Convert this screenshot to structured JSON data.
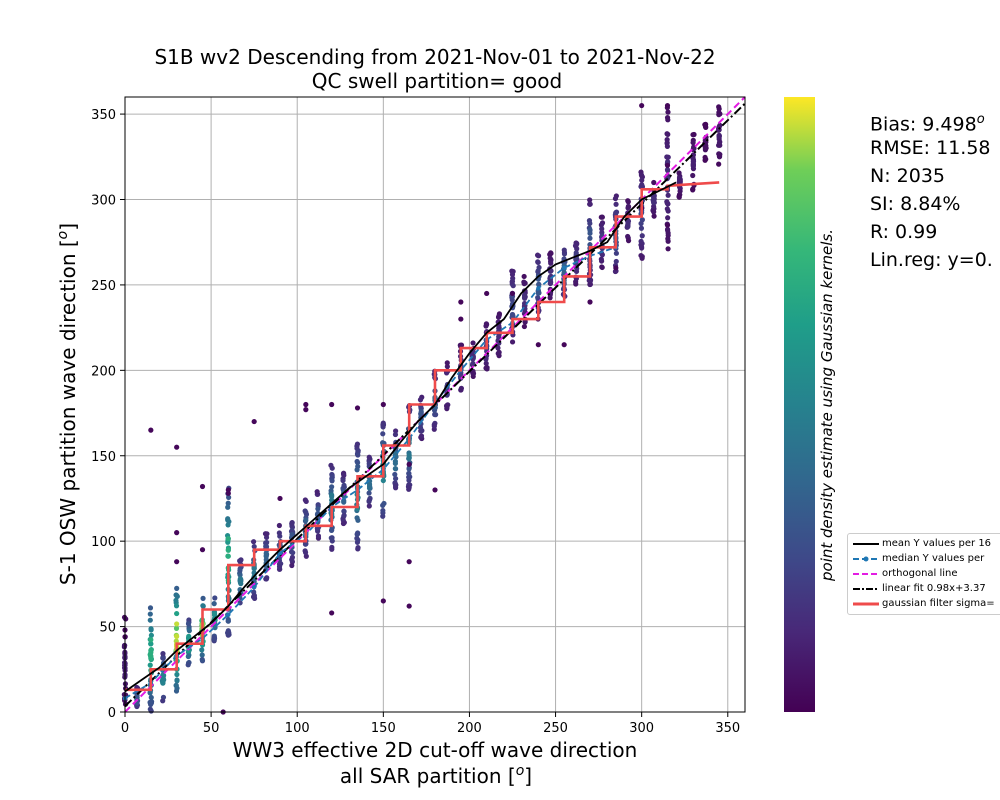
{
  "chart_data": {
    "type": "scatter",
    "title_line1": "S1B wv2 Descending from 2021-Nov-01 to 2021-Nov-22",
    "title_line2": "QC swell partition= good",
    "xlabel_line1": "WW3 effective 2D cut-off wave direction",
    "xlabel_line2": "all SAR partition [",
    "ylabel": "S-1 OSW partition wave direction [",
    "degree_symbol": "o",
    "colorbar_label": "point density estimate using Gaussian kernels.",
    "xlim": [
      0,
      360
    ],
    "ylim": [
      0,
      360
    ],
    "xticks": [
      "0",
      "50",
      "100",
      "150",
      "200",
      "250",
      "300",
      "350"
    ],
    "yticks": [
      "0",
      "50",
      "100",
      "150",
      "200",
      "250",
      "300",
      "350"
    ],
    "grid": true,
    "legend_position": "right, below colorbar",
    "stats": {
      "bias": "Bias: 9.498",
      "rmse": "RMSE: 11.58",
      "n": "N: 2035",
      "si": "SI: 8.84%",
      "r": "R: 0.99",
      "linreg": "Lin.reg: y=0."
    },
    "legend": [
      {
        "label": "mean Y values per 16",
        "color": "#000000",
        "style": "solid"
      },
      {
        "label": "median Y values per",
        "color": "#1f77b4",
        "style": "dash-dot-marker"
      },
      {
        "label": "orthogonal line",
        "color": "#e31ce3",
        "style": "dashed"
      },
      {
        "label": "linear fit 0.98x+3.37",
        "color": "#000000",
        "style": "dashdot"
      },
      {
        "label": "gaussian filter sigma=",
        "color": "#ef4b4b",
        "style": "thick"
      }
    ],
    "scatter_columns": [
      {
        "x": 0,
        "ymin": 0,
        "ymax": 58,
        "density": 0.1
      },
      {
        "x": 7,
        "ymin": 0,
        "ymax": 15,
        "density": 0.3
      },
      {
        "x": 15,
        "ymin": 0,
        "ymax": 68,
        "density": 0.7
      },
      {
        "x": 22,
        "ymin": 5,
        "ymax": 35,
        "density": 0.5
      },
      {
        "x": 30,
        "ymin": 10,
        "ymax": 75,
        "density": 0.95
      },
      {
        "x": 37,
        "ymin": 25,
        "ymax": 55,
        "density": 0.6
      },
      {
        "x": 45,
        "ymin": 30,
        "ymax": 68,
        "density": 0.9
      },
      {
        "x": 52,
        "ymin": 40,
        "ymax": 70,
        "density": 0.55
      },
      {
        "x": 60,
        "ymin": 45,
        "ymax": 134,
        "density": 0.7
      },
      {
        "x": 67,
        "ymin": 60,
        "ymax": 90,
        "density": 0.45
      },
      {
        "x": 75,
        "ymin": 65,
        "ymax": 100,
        "density": 0.45
      },
      {
        "x": 82,
        "ymin": 75,
        "ymax": 105,
        "density": 0.35
      },
      {
        "x": 90,
        "ymin": 80,
        "ymax": 110,
        "density": 0.3
      },
      {
        "x": 97,
        "ymin": 85,
        "ymax": 115,
        "density": 0.3
      },
      {
        "x": 105,
        "ymin": 90,
        "ymax": 125,
        "density": 0.35
      },
      {
        "x": 112,
        "ymin": 100,
        "ymax": 130,
        "density": 0.3
      },
      {
        "x": 120,
        "ymin": 95,
        "ymax": 145,
        "density": 0.45
      },
      {
        "x": 127,
        "ymin": 110,
        "ymax": 140,
        "density": 0.35
      },
      {
        "x": 135,
        "ymin": 95,
        "ymax": 158,
        "density": 0.5
      },
      {
        "x": 142,
        "ymin": 120,
        "ymax": 150,
        "density": 0.4
      },
      {
        "x": 150,
        "ymin": 110,
        "ymax": 170,
        "density": 0.5
      },
      {
        "x": 157,
        "ymin": 130,
        "ymax": 165,
        "density": 0.4
      },
      {
        "x": 165,
        "ymin": 130,
        "ymax": 180,
        "density": 0.45
      },
      {
        "x": 172,
        "ymin": 160,
        "ymax": 185,
        "density": 0.3
      },
      {
        "x": 180,
        "ymin": 165,
        "ymax": 200,
        "density": 0.35
      },
      {
        "x": 187,
        "ymin": 175,
        "ymax": 205,
        "density": 0.2
      },
      {
        "x": 195,
        "ymin": 185,
        "ymax": 215,
        "density": 0.2
      },
      {
        "x": 202,
        "ymin": 195,
        "ymax": 220,
        "density": 0.15
      },
      {
        "x": 210,
        "ymin": 200,
        "ymax": 228,
        "density": 0.2
      },
      {
        "x": 217,
        "ymin": 205,
        "ymax": 235,
        "density": 0.15
      },
      {
        "x": 225,
        "ymin": 215,
        "ymax": 262,
        "density": 0.25
      },
      {
        "x": 232,
        "ymin": 225,
        "ymax": 255,
        "density": 0.15
      },
      {
        "x": 240,
        "ymin": 230,
        "ymax": 270,
        "density": 0.3
      },
      {
        "x": 247,
        "ymin": 240,
        "ymax": 270,
        "density": 0.15
      },
      {
        "x": 255,
        "ymin": 240,
        "ymax": 275,
        "density": 0.35
      },
      {
        "x": 262,
        "ymin": 250,
        "ymax": 280,
        "density": 0.2
      },
      {
        "x": 270,
        "ymin": 250,
        "ymax": 300,
        "density": 0.3
      },
      {
        "x": 277,
        "ymin": 260,
        "ymax": 290,
        "density": 0.2
      },
      {
        "x": 285,
        "ymin": 255,
        "ymax": 303,
        "density": 0.3
      },
      {
        "x": 292,
        "ymin": 275,
        "ymax": 300,
        "density": 0.15
      },
      {
        "x": 300,
        "ymin": 265,
        "ymax": 318,
        "density": 0.25
      },
      {
        "x": 307,
        "ymin": 290,
        "ymax": 310,
        "density": 0.15
      },
      {
        "x": 315,
        "ymin": 270,
        "ymax": 355,
        "density": 0.15
      },
      {
        "x": 322,
        "ymin": 300,
        "ymax": 320,
        "density": 0.1
      },
      {
        "x": 330,
        "ymin": 305,
        "ymax": 340,
        "density": 0.1
      },
      {
        "x": 337,
        "ymin": 320,
        "ymax": 345,
        "density": 0.05
      },
      {
        "x": 345,
        "ymin": 320,
        "ymax": 355,
        "density": 0.1
      }
    ],
    "outliers": [
      [
        15,
        165
      ],
      [
        30,
        155
      ],
      [
        30,
        105
      ],
      [
        30,
        88
      ],
      [
        45,
        132
      ],
      [
        45,
        95
      ],
      [
        60,
        130
      ],
      [
        60,
        128
      ],
      [
        57,
        0
      ],
      [
        75,
        170
      ],
      [
        105,
        180
      ],
      [
        105,
        177
      ],
      [
        120,
        180
      ],
      [
        120,
        58
      ],
      [
        150,
        180
      ],
      [
        135,
        178
      ],
      [
        165,
        62
      ],
      [
        165,
        88
      ],
      [
        195,
        240
      ],
      [
        195,
        230
      ],
      [
        210,
        245
      ],
      [
        240,
        215
      ],
      [
        255,
        215
      ],
      [
        300,
        295
      ],
      [
        315,
        355
      ],
      [
        300,
        355
      ],
      [
        315,
        320
      ],
      [
        315,
        285
      ],
      [
        0,
        44
      ],
      [
        0,
        48
      ],
      [
        90,
        125
      ],
      [
        180,
        130
      ],
      [
        165,
        145
      ],
      [
        150,
        65
      ],
      [
        225,
        245
      ],
      [
        270,
        240
      ],
      [
        285,
        260
      ]
    ],
    "mean_line": {
      "x": [
        0,
        10,
        20,
        30,
        40,
        50,
        60,
        70,
        80,
        90,
        100,
        110,
        120,
        130,
        140,
        150,
        160,
        170,
        180,
        190,
        200,
        210,
        220,
        230,
        240,
        250,
        260,
        270,
        280,
        290,
        300,
        310,
        320
      ],
      "y": [
        12,
        19,
        26,
        36,
        44,
        52,
        62,
        74,
        85,
        95,
        104,
        113,
        122,
        131,
        138,
        145,
        158,
        170,
        180,
        196,
        210,
        222,
        230,
        245,
        255,
        262,
        266,
        270,
        275,
        290,
        300,
        305,
        310
      ]
    },
    "median_line": {
      "x": [
        0,
        15,
        30,
        45,
        60,
        75,
        90,
        105,
        120,
        135,
        150,
        165,
        180,
        195,
        210,
        225,
        240,
        255,
        270,
        285
      ],
      "y": [
        8,
        17,
        33,
        43,
        57,
        73,
        93,
        104,
        120,
        130,
        142,
        160,
        181,
        200,
        218,
        228,
        248,
        260,
        267,
        272
      ]
    },
    "gaussian_line": {
      "x": [
        0,
        15,
        15,
        30,
        30,
        45,
        45,
        60,
        60,
        75,
        75,
        90,
        90,
        105,
        105,
        120,
        120,
        135,
        135,
        150,
        150,
        165,
        165,
        180,
        180,
        195,
        195,
        210,
        210,
        225,
        225,
        240,
        240,
        255,
        255,
        270,
        270,
        285,
        285,
        300,
        300,
        315,
        315,
        330,
        345
      ],
      "y": [
        13,
        13,
        25,
        25,
        40,
        40,
        60,
        60,
        86,
        86,
        95,
        95,
        100,
        100,
        109,
        109,
        120,
        120,
        138,
        138,
        156,
        156,
        180,
        180,
        200,
        200,
        213,
        213,
        222,
        222,
        230,
        230,
        240,
        240,
        255,
        255,
        272,
        272,
        290,
        290,
        306,
        306,
        308,
        309,
        310
      ]
    },
    "orthogonal_line": {
      "x": [
        0,
        360
      ],
      "y": [
        0,
        360
      ]
    },
    "linear_fit": {
      "slope": 0.98,
      "intercept": 3.37
    }
  }
}
